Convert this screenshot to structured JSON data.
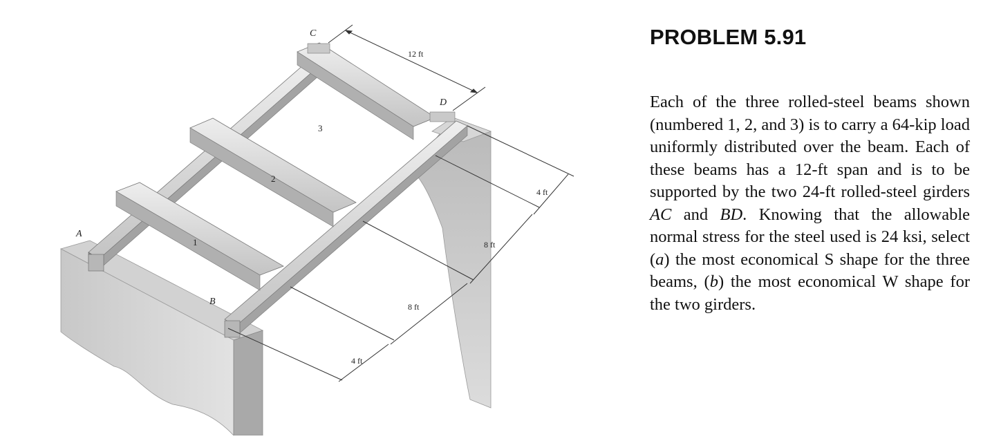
{
  "problem": {
    "heading": "PROBLEM 5.91",
    "text_parts": {
      "p1": "Each of the three rolled-steel beams shown (numbered 1, 2, and 3) is to carry a 64-kip load uniformly distributed over the beam. Each of these beams has a 12-ft span and is to be supported by the two 24-ft rolled-steel girders ",
      "ac": "AC",
      "p2": " and ",
      "bd": "BD",
      "p3": ". Knowing that the allowable normal stress for the steel used is 24 ksi, select (",
      "a": "a",
      "p4": ") the most economical S shape for the three beams, (",
      "b": "b",
      "p5": ") the most economical W shape for the two girders."
    }
  },
  "figure": {
    "points": {
      "A": "A",
      "B": "B",
      "C": "C",
      "D": "D"
    },
    "beam_numbers": {
      "beam1": "1",
      "beam2": "2",
      "beam3": "3"
    },
    "dimensions": {
      "span": "12 ft",
      "seg1": "4 ft",
      "seg2": "8 ft",
      "seg3": "8 ft",
      "seg4": "4 ft"
    },
    "colors": {
      "steel_light": "#dedede",
      "steel_mid": "#bdbdbd",
      "steel_dark": "#8c8c8c",
      "support_face": "#cfcfcf",
      "support_dark": "#9a9a9a"
    }
  }
}
